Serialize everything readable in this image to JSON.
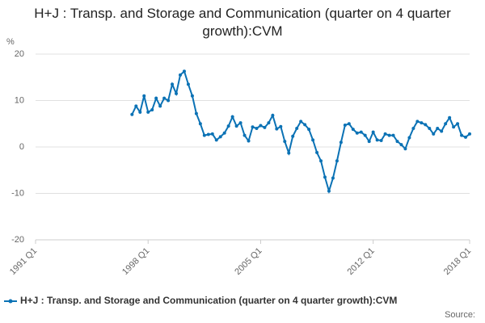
{
  "chart_data": {
    "type": "line",
    "title": "H+J : Transp. and Storage and Communication (quarter on 4 quarter growth):CVM",
    "y_unit": "%",
    "source": "Source:",
    "categories": [
      "1991 Q1",
      null,
      null,
      null,
      null,
      null,
      null,
      null,
      null,
      null,
      null,
      null,
      null,
      null,
      null,
      null,
      null,
      null,
      null,
      null,
      null,
      null,
      null,
      null,
      null,
      null,
      null,
      null,
      "1998 Q1",
      null,
      null,
      null,
      null,
      null,
      null,
      null,
      null,
      null,
      null,
      null,
      null,
      null,
      null,
      null,
      null,
      null,
      null,
      null,
      null,
      null,
      null,
      null,
      null,
      null,
      null,
      null,
      "2005 Q1",
      null,
      null,
      null,
      null,
      null,
      null,
      null,
      null,
      null,
      null,
      null,
      null,
      null,
      null,
      null,
      null,
      null,
      null,
      null,
      null,
      null,
      null,
      null,
      null,
      null,
      null,
      null,
      "2012 Q1",
      null,
      null,
      null,
      null,
      null,
      null,
      null,
      null,
      null,
      null,
      null,
      null,
      null,
      null,
      null,
      null,
      null,
      null,
      null,
      null,
      null,
      null,
      null,
      "2018 Q1"
    ],
    "series": [
      {
        "name": "H+J : Transp. and Storage and Communication (quarter on 4 quarter growth):CVM",
        "color": "#0b72b5",
        "values": [
          null,
          null,
          null,
          null,
          null,
          null,
          null,
          null,
          null,
          null,
          null,
          null,
          null,
          null,
          null,
          null,
          null,
          null,
          null,
          null,
          null,
          null,
          null,
          null,
          7.0,
          8.8,
          7.5,
          11.0,
          7.5,
          8.0,
          10.5,
          8.8,
          10.5,
          10.0,
          13.5,
          11.5,
          15.5,
          16.3,
          13.5,
          11.0,
          7.2,
          5.0,
          2.5,
          2.7,
          2.8,
          1.5,
          2.2,
          3.0,
          4.5,
          6.5,
          4.5,
          5.2,
          2.5,
          1.3,
          4.3,
          4.0,
          4.6,
          4.2,
          5.2,
          6.8,
          3.9,
          4.4,
          1.2,
          -1.3,
          2.3,
          4.0,
          5.5,
          4.8,
          3.8,
          1.5,
          -1.2,
          -3.0,
          -6.5,
          -9.5,
          -6.7,
          -3.0,
          1.0,
          4.7,
          5.0,
          3.8,
          3.0,
          3.2,
          2.5,
          1.2,
          3.2,
          1.5,
          1.4,
          2.8,
          2.5,
          2.5,
          1.2,
          0.5,
          -0.4,
          2.0,
          4.0,
          5.5,
          5.2,
          4.8,
          4.0,
          2.8,
          4.0,
          3.4,
          5.0,
          6.3,
          4.3,
          5.0,
          2.5,
          2.1,
          2.8
        ]
      }
    ],
    "ylim": [
      -20,
      20
    ],
    "yticks": [
      -20,
      -10,
      0,
      10,
      20
    ],
    "grid": true
  }
}
